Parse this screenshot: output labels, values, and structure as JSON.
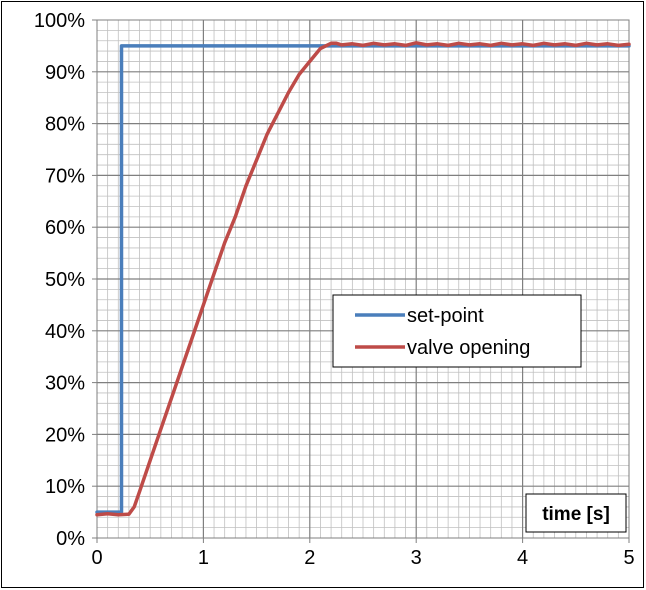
{
  "chart_data": {
    "type": "line",
    "title": "",
    "xlabel": "time [s]",
    "ylabel": "",
    "xlim": [
      0,
      5
    ],
    "ylim": [
      0,
      1
    ],
    "x_ticks": [
      "0",
      "1",
      "2",
      "3",
      "4",
      "5"
    ],
    "y_ticks": [
      "0%",
      "10%",
      "20%",
      "30%",
      "40%",
      "50%",
      "60%",
      "70%",
      "80%",
      "90%",
      "100%"
    ],
    "grid": true,
    "minor_grid": true,
    "legend_position": "center-right",
    "series": [
      {
        "name": "set-point",
        "color": "#4a7ebb",
        "x": [
          0,
          0.23,
          0.23,
          5
        ],
        "y": [
          0.05,
          0.05,
          0.95,
          0.95
        ]
      },
      {
        "name": "valve opening",
        "color": "#be4b48",
        "x": [
          0,
          0.1,
          0.2,
          0.3,
          0.35,
          0.4,
          0.5,
          0.6,
          0.7,
          0.8,
          0.9,
          1.0,
          1.1,
          1.2,
          1.3,
          1.4,
          1.5,
          1.6,
          1.7,
          1.8,
          1.9,
          2.0,
          2.1,
          2.2,
          2.25,
          2.3,
          2.4,
          2.5,
          2.6,
          2.7,
          2.8,
          2.9,
          3.0,
          3.1,
          3.2,
          3.3,
          3.4,
          3.5,
          3.6,
          3.7,
          3.8,
          3.9,
          4.0,
          4.1,
          4.2,
          4.3,
          4.4,
          4.5,
          4.6,
          4.7,
          4.8,
          4.9,
          5.0
        ],
        "y": [
          0.045,
          0.047,
          0.045,
          0.046,
          0.06,
          0.09,
          0.15,
          0.21,
          0.27,
          0.33,
          0.39,
          0.45,
          0.51,
          0.57,
          0.62,
          0.68,
          0.73,
          0.78,
          0.82,
          0.86,
          0.895,
          0.92,
          0.945,
          0.955,
          0.955,
          0.952,
          0.954,
          0.951,
          0.955,
          0.952,
          0.954,
          0.951,
          0.956,
          0.952,
          0.954,
          0.951,
          0.955,
          0.952,
          0.954,
          0.951,
          0.955,
          0.952,
          0.954,
          0.951,
          0.955,
          0.952,
          0.954,
          0.951,
          0.955,
          0.952,
          0.954,
          0.951,
          0.953
        ]
      }
    ]
  }
}
